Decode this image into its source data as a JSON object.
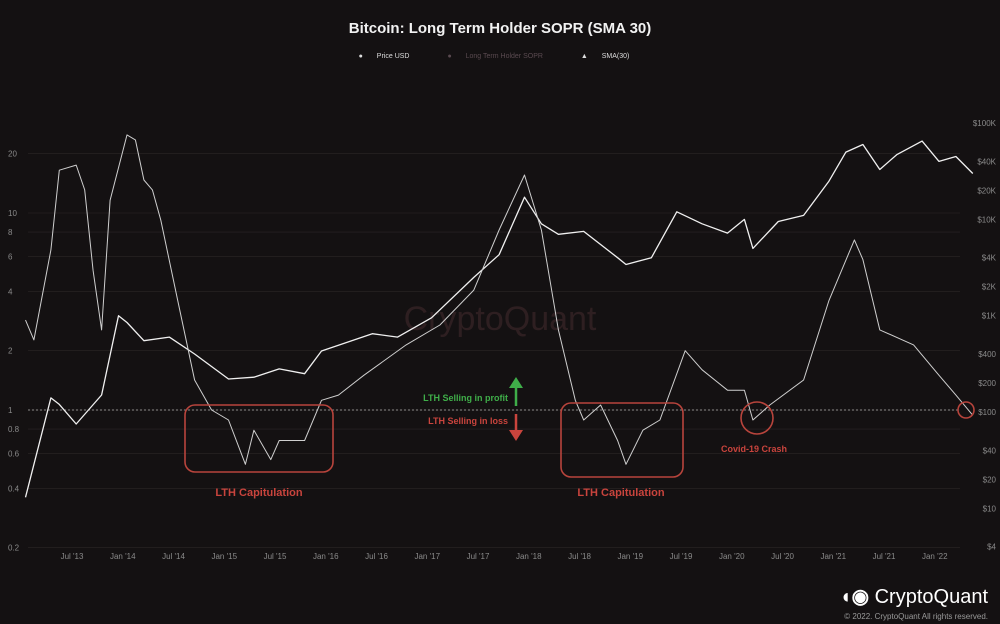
{
  "chart_data": {
    "type": "line",
    "title": "Bitcoin: Long Term Holder SOPR (SMA 30)",
    "legend": [
      "Price USD",
      "Long Term Holder SOPR",
      "SMA(30)"
    ],
    "legend_placement": "top-center",
    "grid": true,
    "x_ticks": [
      "Jul '13",
      "Jan '14",
      "Jul '14",
      "Jan '15",
      "Jul '15",
      "Jan '16",
      "Jul '16",
      "Jan '17",
      "Jul '17",
      "Jan '18",
      "Jul '18",
      "Jan '19",
      "Jul '19",
      "Jan '20",
      "Jul '20",
      "Jan '21",
      "Jul '21",
      "Jan '22"
    ],
    "y_left": {
      "scale": "log",
      "range": [
        0.2,
        30
      ],
      "ticks": [
        "20",
        "10",
        "8",
        "6",
        "4",
        "2",
        "1",
        "0.8",
        "0.6",
        "0.4",
        "0.2"
      ]
    },
    "y_right": {
      "scale": "log",
      "range": [
        4,
        100000
      ],
      "ticks": [
        "$100K",
        "$40K",
        "$20K",
        "$10K",
        "$4K",
        "$2K",
        "$1K",
        "$400",
        "$200",
        "$100",
        "$40",
        "$20",
        "$10",
        "$4"
      ]
    },
    "series": [
      {
        "name": "Price USD",
        "color": "#f0f0f0",
        "axis": "right",
        "points": [
          [
            "2013-01",
            13
          ],
          [
            "2013-04",
            140
          ],
          [
            "2013-05",
            120
          ],
          [
            "2013-07",
            75
          ],
          [
            "2013-10",
            150
          ],
          [
            "2013-12",
            1000
          ],
          [
            "2014-01",
            850
          ],
          [
            "2014-03",
            550
          ],
          [
            "2014-06",
            600
          ],
          [
            "2014-09",
            400
          ],
          [
            "2015-01",
            220
          ],
          [
            "2015-04",
            230
          ],
          [
            "2015-07",
            280
          ],
          [
            "2015-10",
            250
          ],
          [
            "2015-12",
            430
          ],
          [
            "2016-06",
            650
          ],
          [
            "2016-09",
            600
          ],
          [
            "2017-01",
            950
          ],
          [
            "2017-06",
            2500
          ],
          [
            "2017-09",
            4300
          ],
          [
            "2017-12",
            17000
          ],
          [
            "2018-02",
            9000
          ],
          [
            "2018-04",
            7000
          ],
          [
            "2018-07",
            7500
          ],
          [
            "2018-11",
            4000
          ],
          [
            "2018-12",
            3400
          ],
          [
            "2019-03",
            4000
          ],
          [
            "2019-06",
            12000
          ],
          [
            "2019-09",
            9000
          ],
          [
            "2019-12",
            7200
          ],
          [
            "2020-02",
            10000
          ],
          [
            "2020-03",
            5000
          ],
          [
            "2020-06",
            9500
          ],
          [
            "2020-09",
            11000
          ],
          [
            "2020-12",
            25000
          ],
          [
            "2021-02",
            50000
          ],
          [
            "2021-04",
            60000
          ],
          [
            "2021-06",
            33000
          ],
          [
            "2021-08",
            47000
          ],
          [
            "2021-11",
            65000
          ],
          [
            "2022-01",
            40000
          ],
          [
            "2022-03",
            45000
          ],
          [
            "2022-05",
            30000
          ]
        ]
      },
      {
        "name": "SMA(30)",
        "color": "#cfcfcf",
        "axis": "left",
        "points": [
          [
            "2013-01",
            2.86
          ],
          [
            "2013-02",
            2.27
          ],
          [
            "2013-04",
            6.5
          ],
          [
            "2013-05",
            16.5
          ],
          [
            "2013-07",
            17.5
          ],
          [
            "2013-08",
            13.1
          ],
          [
            "2013-09",
            5.1
          ],
          [
            "2013-10",
            2.55
          ],
          [
            "2013-11",
            11.6
          ],
          [
            "2014-01",
            24.9
          ],
          [
            "2014-02",
            23.5
          ],
          [
            "2014-03",
            14.7
          ],
          [
            "2014-04",
            13.1
          ],
          [
            "2014-05",
            9.2
          ],
          [
            "2014-07",
            3.6
          ],
          [
            "2014-09",
            1.42
          ],
          [
            "2014-11",
            1.0
          ],
          [
            "2015-01",
            0.89
          ],
          [
            "2015-03",
            0.53
          ],
          [
            "2015-04",
            0.79
          ],
          [
            "2015-06",
            0.56
          ],
          [
            "2015-07",
            0.7
          ],
          [
            "2015-10",
            0.7
          ],
          [
            "2015-12",
            1.12
          ],
          [
            "2016-02",
            1.19
          ],
          [
            "2016-05",
            1.5
          ],
          [
            "2016-10",
            2.14
          ],
          [
            "2017-02",
            2.7
          ],
          [
            "2017-06",
            4.06
          ],
          [
            "2017-09",
            8.2
          ],
          [
            "2017-12",
            15.6
          ],
          [
            "2018-02",
            8.2
          ],
          [
            "2018-04",
            2.55
          ],
          [
            "2018-06",
            1.12
          ],
          [
            "2018-07",
            0.89
          ],
          [
            "2018-09",
            1.06
          ],
          [
            "2018-11",
            0.7
          ],
          [
            "2018-12",
            0.53
          ],
          [
            "2019-02",
            0.79
          ],
          [
            "2019-04",
            0.89
          ],
          [
            "2019-07",
            2.0
          ],
          [
            "2019-09",
            1.6
          ],
          [
            "2019-12",
            1.26
          ],
          [
            "2020-02",
            1.26
          ],
          [
            "2020-03",
            0.89
          ],
          [
            "2020-05",
            1.06
          ],
          [
            "2020-09",
            1.42
          ],
          [
            "2020-12",
            3.6
          ],
          [
            "2021-03",
            7.3
          ],
          [
            "2021-04",
            5.8
          ],
          [
            "2021-06",
            2.55
          ],
          [
            "2021-10",
            2.14
          ],
          [
            "2022-01",
            1.5
          ],
          [
            "2022-03",
            1.19
          ],
          [
            "2022-05",
            0.94
          ]
        ]
      }
    ],
    "annotations": {
      "profit": "LTH Selling in profit",
      "loss": "LTH Selling in loss",
      "capitulation_1": "LTH Capitulation",
      "capitulation_2": "LTH Capitulation",
      "covid": "Covid-19 Crash"
    },
    "colors": {
      "profit": "#3fae49",
      "loss": "#c9443d",
      "box": "#b8443c"
    }
  },
  "watermark": "CryptoQuant",
  "footer": {
    "logo": "CryptoQuant",
    "copyright": "© 2022. CryptoQuant All rights reserved."
  }
}
